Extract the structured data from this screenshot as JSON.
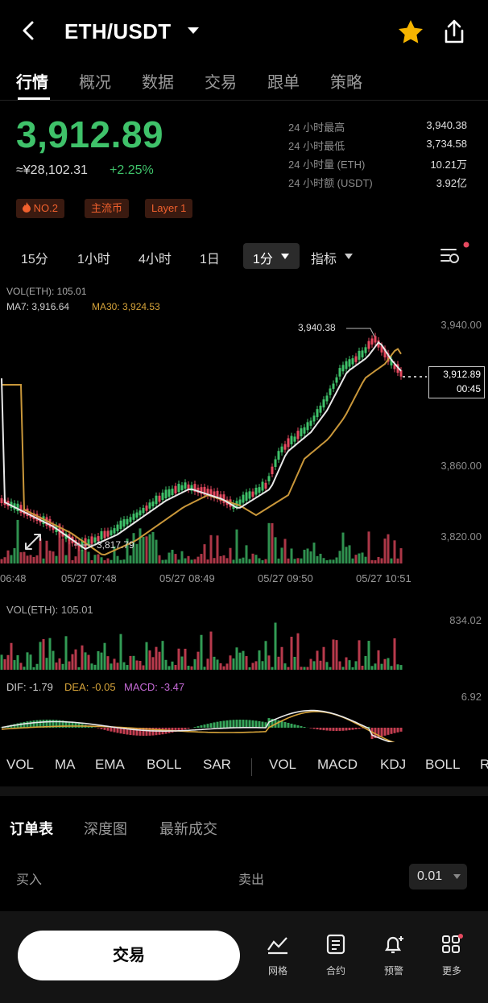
{
  "header": {
    "pair": "ETH/USDT"
  },
  "tabs": [
    "行情",
    "概况",
    "数据",
    "交易",
    "跟单",
    "策略"
  ],
  "price": {
    "last": "3,912.89",
    "cny": "≈¥28,102.31",
    "change": "+2.25%"
  },
  "stats": [
    {
      "label": "24 小时最高",
      "value": "3,940.38"
    },
    {
      "label": "24 小时最低",
      "value": "3,734.58"
    },
    {
      "label": "24 小时量 (ETH)",
      "value": "10.21万"
    },
    {
      "label": "24 小时额 (USDT)",
      "value": "3.92亿"
    }
  ],
  "tags": [
    "NO.2",
    "主流币",
    "Layer 1"
  ],
  "timeframes": [
    "15分",
    "1小时",
    "4小时",
    "1日"
  ],
  "active_timeframe": "1分",
  "indicator_label": "指标",
  "chart_legend": {
    "vol": "VOL(ETH): 105.01",
    "ma7": "MA7: 3,916.64",
    "ma30": "MA30: 3,924.53"
  },
  "price_axis": [
    "3,940.00",
    "3,860.00",
    "3,820.00"
  ],
  "high_label": "3,940.38",
  "low_label": "3,817.79",
  "current_tag": {
    "price": "3,912.89",
    "countdown": "00:45"
  },
  "x_axis": [
    "06:48",
    "05/27 07:48",
    "05/27 08:49",
    "05/27 09:50",
    "05/27 10:51"
  ],
  "volume_panel": {
    "legend": "VOL(ETH): 105.01",
    "axis": "834.02"
  },
  "macd_panel": {
    "dif": "DIF: -1.79",
    "dea": "DEA: -0.05",
    "macd": "MACD: -3.47",
    "axis": "6.92"
  },
  "main_indicators": [
    "VOL",
    "MA",
    "EMA",
    "BOLL",
    "SAR"
  ],
  "sub_indicators": [
    "VOL",
    "MACD",
    "KDJ",
    "BOLL",
    "R"
  ],
  "orderbook": {
    "tabs": [
      "订单表",
      "深度图",
      "最新成交"
    ],
    "buy": "买入",
    "sell": "卖出",
    "precision": "0.01"
  },
  "bottom_nav": {
    "trade": "交易",
    "items": [
      "网格",
      "合约",
      "预警",
      "更多"
    ]
  },
  "colors": {
    "up": "#3fc26a",
    "down": "#e6495f",
    "accent": "#f0602d",
    "star": "#f5b400"
  }
}
